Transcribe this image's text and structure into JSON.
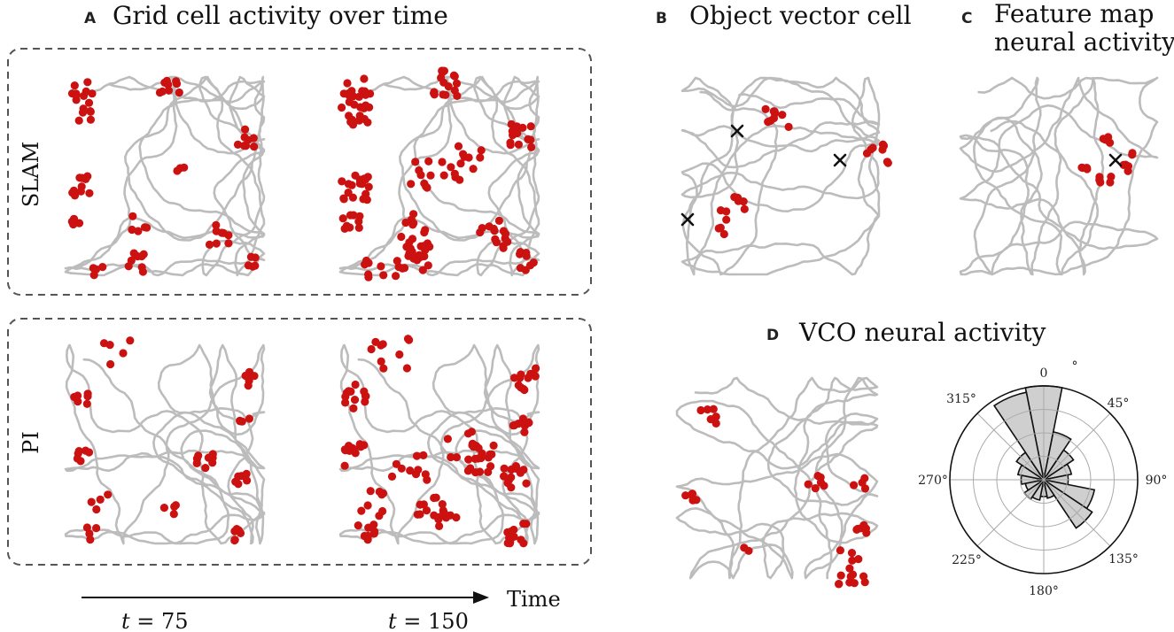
{
  "panels": {
    "A": {
      "letter": "A",
      "title": "Grid cell activity over time"
    },
    "B": {
      "letter": "B",
      "title": "Object vector cell"
    },
    "C": {
      "letter": "C",
      "title_lines": [
        "Feature map",
        "neural activity"
      ]
    },
    "D": {
      "letter": "D",
      "title": "VCO neural activity"
    }
  },
  "rows": {
    "slam": "SLAM",
    "pi": "PI"
  },
  "timeline": {
    "axis_label": "Time",
    "t1_var": "t",
    "t1_rest": " = 75",
    "t2_var": "t",
    "t2_rest": " = 150"
  },
  "polar": {
    "angle_labels": [
      "0",
      "°",
      "45°",
      "90°",
      "135°",
      "180°",
      "225°",
      "270°",
      "315°"
    ],
    "directions_deg": [
      0,
      22.5,
      45,
      67.5,
      90,
      112.5,
      135,
      157.5,
      180,
      202.5,
      225,
      247.5,
      270,
      292.5,
      315,
      337.5
    ],
    "bin_values": [
      1.0,
      0.52,
      0.38,
      0.3,
      0.26,
      0.55,
      0.62,
      0.2,
      0.18,
      0.22,
      0.25,
      0.2,
      0.24,
      0.28,
      0.35,
      0.95
    ],
    "rlim": [
      0,
      1.0
    ],
    "rings": 4
  },
  "colors": {
    "trajectory": "#bcbcbc",
    "spike": "#cc1111",
    "marker": "#111111",
    "histogram_fill": "#cfcfcf"
  },
  "icons": {
    "object_marker": "x-mark-icon",
    "time_arrow": "arrow-right-icon"
  }
}
